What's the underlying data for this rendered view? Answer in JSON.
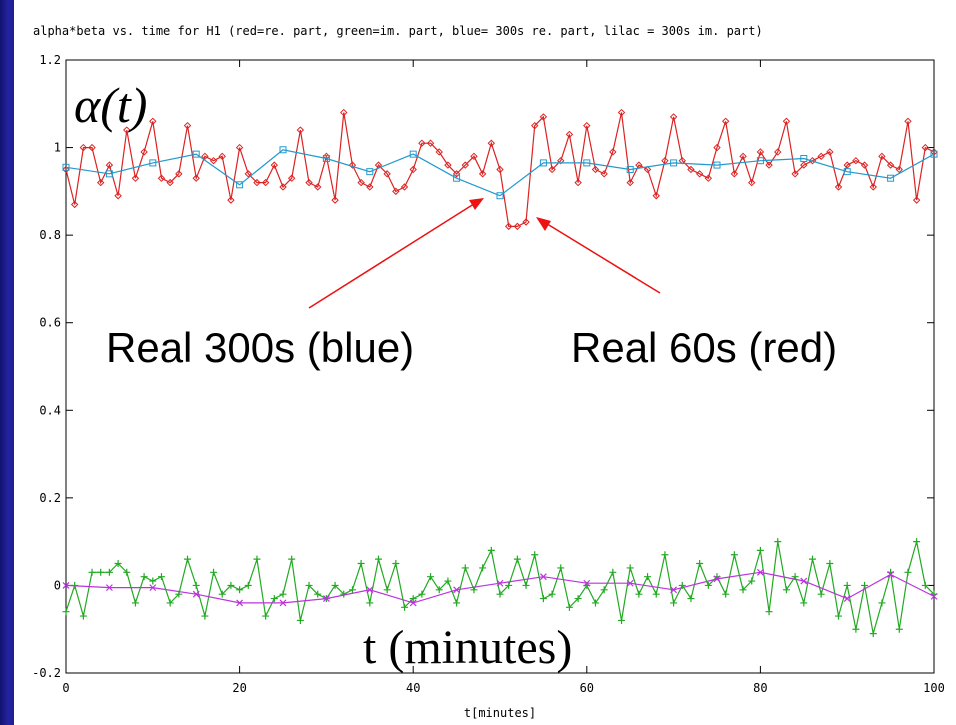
{
  "chart_data": {
    "type": "line",
    "title": "alpha*beta vs. time for H1 (red=re. part, green=im. part, blue= 300s re. part, lilac = 300s im. part)",
    "xlabel": "t[minutes]",
    "ylabel": "",
    "xlim": [
      0,
      100
    ],
    "ylim": [
      -0.2,
      1.2
    ],
    "x_ticks": [
      "0",
      "20",
      "40",
      "60",
      "80",
      "100"
    ],
    "y_ticks": [
      "-0.2",
      "0",
      "0.2",
      "0.4",
      "0.6",
      "0.8",
      "1",
      "1.2"
    ],
    "grid": false,
    "series": [
      {
        "name": "red=re. part",
        "color": "#dd2222",
        "marker": "diamond",
        "x": [
          0,
          1,
          2,
          3,
          4,
          5,
          6,
          7,
          8,
          9,
          10,
          11,
          12,
          13,
          14,
          15,
          16,
          17,
          18,
          19,
          20,
          21,
          22,
          23,
          24,
          25,
          26,
          27,
          28,
          29,
          30,
          31,
          32,
          33,
          34,
          35,
          36,
          37,
          38,
          39,
          40,
          41,
          42,
          43,
          44,
          45,
          46,
          47,
          48,
          49,
          50,
          51,
          52,
          53,
          54,
          55,
          56,
          57,
          58,
          59,
          60,
          61,
          62,
          63,
          64,
          65,
          66,
          67,
          68,
          69,
          70,
          71,
          72,
          73,
          74,
          75,
          76,
          77,
          78,
          79,
          80,
          81,
          82,
          83,
          84,
          85,
          86,
          87,
          88,
          89,
          90,
          91,
          92,
          93,
          94,
          95,
          96,
          97,
          98,
          99,
          100
        ],
        "values": [
          0.95,
          0.87,
          1.0,
          1.0,
          0.92,
          0.96,
          0.89,
          1.04,
          0.93,
          0.99,
          1.06,
          0.93,
          0.92,
          0.94,
          1.05,
          0.93,
          0.98,
          0.97,
          0.98,
          0.88,
          1.0,
          0.94,
          0.92,
          0.92,
          0.96,
          0.91,
          0.93,
          1.04,
          0.92,
          0.91,
          0.98,
          0.88,
          1.08,
          0.96,
          0.92,
          0.91,
          0.96,
          0.94,
          0.9,
          0.91,
          0.95,
          1.01,
          1.01,
          0.99,
          0.96,
          0.94,
          0.96,
          0.98,
          0.94,
          1.01,
          0.95,
          0.82,
          0.82,
          0.83,
          1.05,
          1.07,
          0.95,
          0.97,
          1.03,
          0.92,
          1.05,
          0.95,
          0.94,
          0.99,
          1.08,
          0.92,
          0.96,
          0.95,
          0.89,
          0.97,
          1.07,
          0.97,
          0.95,
          0.94,
          0.93,
          1.0,
          1.06,
          0.94,
          0.98,
          0.92,
          0.99,
          0.96,
          0.99,
          1.06,
          0.94,
          0.96,
          0.97,
          0.98,
          0.99,
          0.91,
          0.96,
          0.97,
          0.96,
          0.91,
          0.98,
          0.96,
          0.95,
          1.06,
          0.88,
          1.0,
          0.99
        ]
      },
      {
        "name": "green=im. part",
        "color": "#22aa22",
        "marker": "plus",
        "x": [
          0,
          1,
          2,
          3,
          4,
          5,
          6,
          7,
          8,
          9,
          10,
          11,
          12,
          13,
          14,
          15,
          16,
          17,
          18,
          19,
          20,
          21,
          22,
          23,
          24,
          25,
          26,
          27,
          28,
          29,
          30,
          31,
          32,
          33,
          34,
          35,
          36,
          37,
          38,
          39,
          40,
          41,
          42,
          43,
          44,
          45,
          46,
          47,
          48,
          49,
          50,
          51,
          52,
          53,
          54,
          55,
          56,
          57,
          58,
          59,
          60,
          61,
          62,
          63,
          64,
          65,
          66,
          67,
          68,
          69,
          70,
          71,
          72,
          73,
          74,
          75,
          76,
          77,
          78,
          79,
          80,
          81,
          82,
          83,
          84,
          85,
          86,
          87,
          88,
          89,
          90,
          91,
          92,
          93,
          94,
          95,
          96,
          97,
          98,
          99,
          100
        ],
        "values": [
          -0.06,
          0.0,
          -0.07,
          0.03,
          0.03,
          0.03,
          0.05,
          0.03,
          -0.04,
          0.02,
          0.01,
          0.02,
          -0.04,
          -0.02,
          0.06,
          0.0,
          -0.07,
          0.03,
          -0.02,
          0.0,
          -0.01,
          0.0,
          0.06,
          -0.07,
          -0.03,
          -0.02,
          0.06,
          -0.08,
          0.0,
          -0.02,
          -0.03,
          0.0,
          -0.02,
          -0.01,
          0.05,
          -0.04,
          0.06,
          -0.01,
          0.05,
          -0.05,
          -0.03,
          -0.02,
          0.02,
          -0.01,
          0.01,
          -0.04,
          0.04,
          -0.01,
          0.04,
          0.08,
          -0.02,
          0.0,
          0.06,
          0.0,
          0.07,
          -0.03,
          -0.02,
          0.04,
          -0.05,
          -0.03,
          0.0,
          -0.04,
          -0.01,
          0.03,
          -0.08,
          0.04,
          -0.02,
          0.02,
          -0.02,
          0.07,
          -0.04,
          0.0,
          -0.03,
          0.05,
          0.0,
          0.02,
          -0.02,
          0.07,
          -0.01,
          0.01,
          0.08,
          -0.06,
          0.1,
          -0.01,
          0.02,
          -0.04,
          0.06,
          -0.02,
          0.05,
          -0.07,
          0.0,
          -0.1,
          0.0,
          -0.11,
          -0.04,
          0.03,
          -0.1,
          0.03,
          0.1,
          0.0,
          -0.02
        ]
      },
      {
        "name": "blue= 300s re. part",
        "color": "#2299cc",
        "marker": "square",
        "x": [
          0,
          5,
          10,
          15,
          20,
          25,
          30,
          35,
          40,
          45,
          50,
          55,
          60,
          65,
          70,
          75,
          80,
          85,
          90,
          95,
          100
        ],
        "values": [
          0.955,
          0.94,
          0.965,
          0.985,
          0.915,
          0.995,
          0.975,
          0.945,
          0.985,
          0.93,
          0.89,
          0.965,
          0.965,
          0.95,
          0.965,
          0.96,
          0.97,
          0.975,
          0.945,
          0.93,
          0.985
        ]
      },
      {
        "name": "lilac = 300s im. part",
        "color": "#bb33dd",
        "marker": "x",
        "x": [
          0,
          5,
          10,
          15,
          20,
          25,
          30,
          35,
          40,
          45,
          50,
          55,
          60,
          65,
          70,
          75,
          80,
          85,
          90,
          95,
          100
        ],
        "values": [
          0.0,
          -0.005,
          -0.005,
          -0.02,
          -0.04,
          -0.04,
          -0.03,
          -0.01,
          -0.04,
          -0.01,
          0.005,
          0.02,
          0.005,
          0.005,
          -0.01,
          0.015,
          0.03,
          0.01,
          -0.03,
          0.025,
          -0.025
        ]
      }
    ],
    "annotations": {
      "alpha_label": "α(t)",
      "t_label": "t (minutes)",
      "real300": "Real 300s (blue)",
      "real60": "Real 60s (red)",
      "arrow_color": "#ee1111"
    }
  }
}
